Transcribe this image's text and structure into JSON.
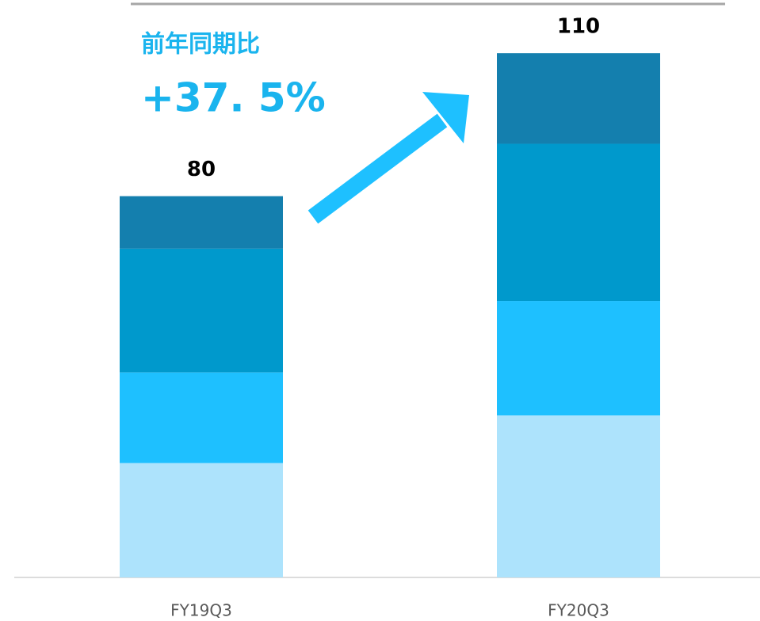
{
  "chart_data": {
    "type": "stacked_bar",
    "categories": [
      "FY19Q3",
      "FY20Q3"
    ],
    "series": [
      {
        "color": "#ade3fc",
        "values": [
          24,
          34
        ]
      },
      {
        "color": "#1ec0ff",
        "values": [
          19,
          24
        ]
      },
      {
        "color": "#0099cc",
        "values": [
          26,
          33
        ]
      },
      {
        "color": "#147fae",
        "values": [
          11,
          19
        ]
      }
    ],
    "totals": [
      80,
      110
    ],
    "ylim": [
      0,
      120
    ],
    "annotation": {
      "label": "前年同期比",
      "value": "+37. 5%",
      "color": "#1ab4ee"
    }
  }
}
